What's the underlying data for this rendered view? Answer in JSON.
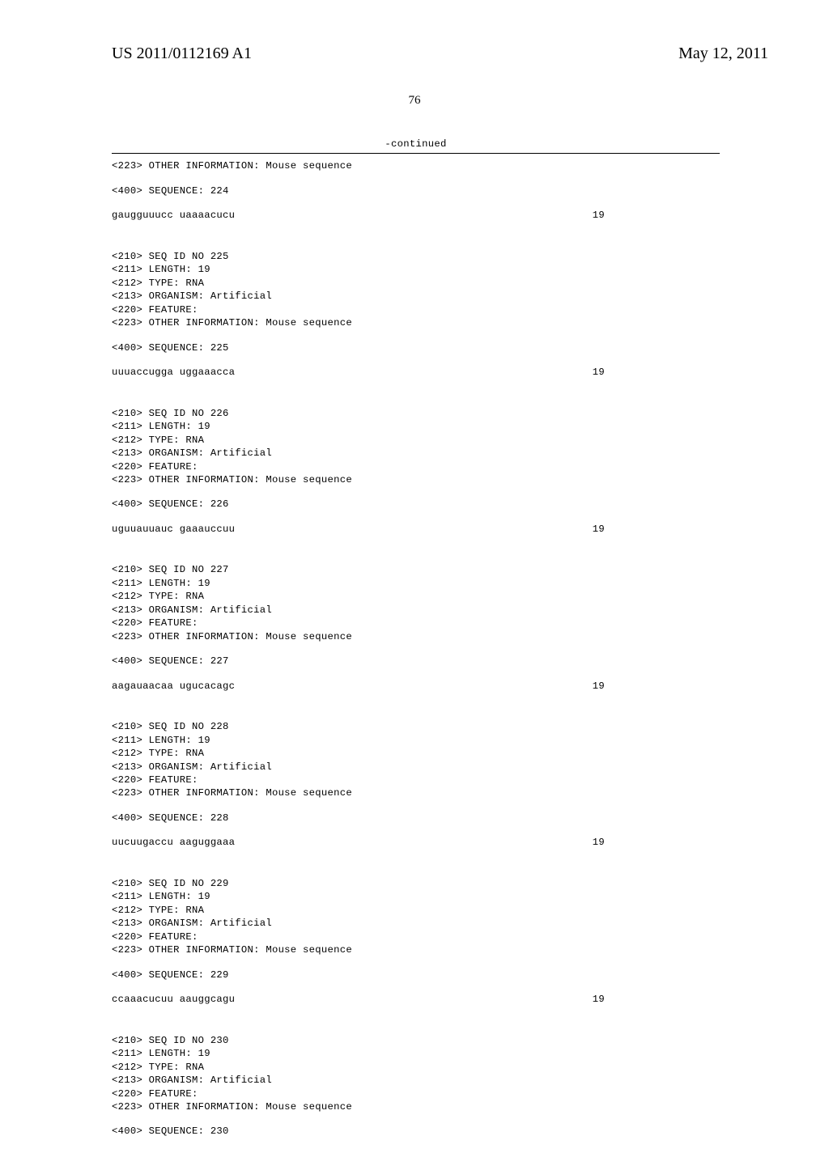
{
  "header": {
    "publication_number": "US 2011/0112169 A1",
    "publication_date": "May 12, 2011",
    "page_number": "76",
    "continued_label": "-continued"
  },
  "entries": [
    {
      "tail_info": "<223> OTHER INFORMATION: Mouse sequence",
      "seq_label": "<400> SEQUENCE: 224",
      "sequence": "gaugguuucc uaaaacucu",
      "length": "19"
    },
    {
      "header_lines": [
        "<210> SEQ ID NO 225",
        "<211> LENGTH: 19",
        "<212> TYPE: RNA",
        "<213> ORGANISM: Artificial",
        "<220> FEATURE:",
        "<223> OTHER INFORMATION: Mouse sequence"
      ],
      "seq_label": "<400> SEQUENCE: 225",
      "sequence": "uuuaccugga uggaaacca",
      "length": "19"
    },
    {
      "header_lines": [
        "<210> SEQ ID NO 226",
        "<211> LENGTH: 19",
        "<212> TYPE: RNA",
        "<213> ORGANISM: Artificial",
        "<220> FEATURE:",
        "<223> OTHER INFORMATION: Mouse sequence"
      ],
      "seq_label": "<400> SEQUENCE: 226",
      "sequence": "uguuauuauc gaaauccuu",
      "length": "19"
    },
    {
      "header_lines": [
        "<210> SEQ ID NO 227",
        "<211> LENGTH: 19",
        "<212> TYPE: RNA",
        "<213> ORGANISM: Artificial",
        "<220> FEATURE:",
        "<223> OTHER INFORMATION: Mouse sequence"
      ],
      "seq_label": "<400> SEQUENCE: 227",
      "sequence": "aagauaacaa ugucacagc",
      "length": "19"
    },
    {
      "header_lines": [
        "<210> SEQ ID NO 228",
        "<211> LENGTH: 19",
        "<212> TYPE: RNA",
        "<213> ORGANISM: Artificial",
        "<220> FEATURE:",
        "<223> OTHER INFORMATION: Mouse sequence"
      ],
      "seq_label": "<400> SEQUENCE: 228",
      "sequence": "uucuugaccu aaguggaaa",
      "length": "19"
    },
    {
      "header_lines": [
        "<210> SEQ ID NO 229",
        "<211> LENGTH: 19",
        "<212> TYPE: RNA",
        "<213> ORGANISM: Artificial",
        "<220> FEATURE:",
        "<223> OTHER INFORMATION: Mouse sequence"
      ],
      "seq_label": "<400> SEQUENCE: 229",
      "sequence": "ccaaacucuu aauggcagu",
      "length": "19"
    },
    {
      "header_lines": [
        "<210> SEQ ID NO 230",
        "<211> LENGTH: 19",
        "<212> TYPE: RNA",
        "<213> ORGANISM: Artificial",
        "<220> FEATURE:",
        "<223> OTHER INFORMATION: Mouse sequence"
      ],
      "seq_label": "<400> SEQUENCE: 230",
      "sequence": null,
      "length": null
    }
  ]
}
